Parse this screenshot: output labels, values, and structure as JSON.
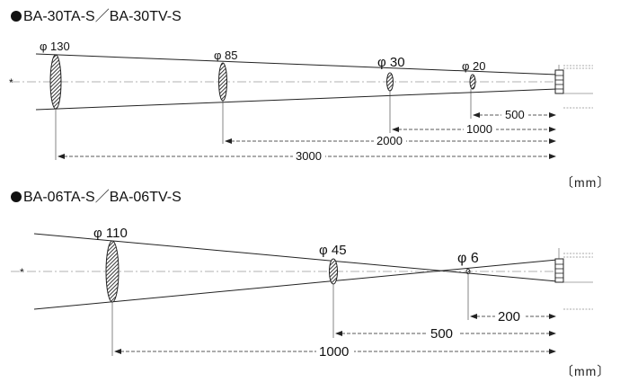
{
  "diagram1": {
    "title": "BA-30TA-S／BA-30TV-S",
    "unit": "〔mm〕",
    "spots": [
      {
        "label": "φ 130"
      },
      {
        "label": "φ 85"
      },
      {
        "label": "φ 30"
      },
      {
        "label": "φ 20"
      }
    ],
    "distances": [
      {
        "label": "500"
      },
      {
        "label": "1000"
      },
      {
        "label": "2000"
      },
      {
        "label": "3000"
      }
    ],
    "axis_mark": "*"
  },
  "diagram2": {
    "title": "BA-06TA-S／BA-06TV-S",
    "unit": "〔mm〕",
    "spots": [
      {
        "label": "φ 110"
      },
      {
        "label": "φ 45"
      },
      {
        "label": "φ 6"
      }
    ],
    "distances": [
      {
        "label": "200"
      },
      {
        "label": "500"
      },
      {
        "label": "1000"
      }
    ],
    "axis_mark": "*"
  },
  "colors": {
    "line": "#222222",
    "hatch": "#333333"
  }
}
